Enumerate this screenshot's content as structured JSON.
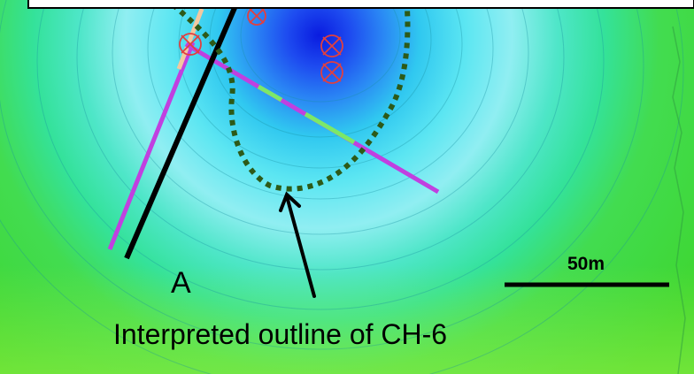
{
  "map": {
    "colors": {
      "outer_green": "#3ED630",
      "light_green": "#86EE3A",
      "cyan": "#2FEAE8",
      "light_blue": "#7AE4F4",
      "deep_blue": "#1024E8",
      "section_line": "#000000",
      "outline_dotted": "#2D5A18",
      "borehole_trace": "#C040E0"
    },
    "labels": {
      "section_end": "A",
      "scale_bar": "50m",
      "outline_caption": "Interpreted outline of CH-6"
    },
    "icons": [
      "drill-collar-symbol",
      "arrow-icon"
    ]
  }
}
